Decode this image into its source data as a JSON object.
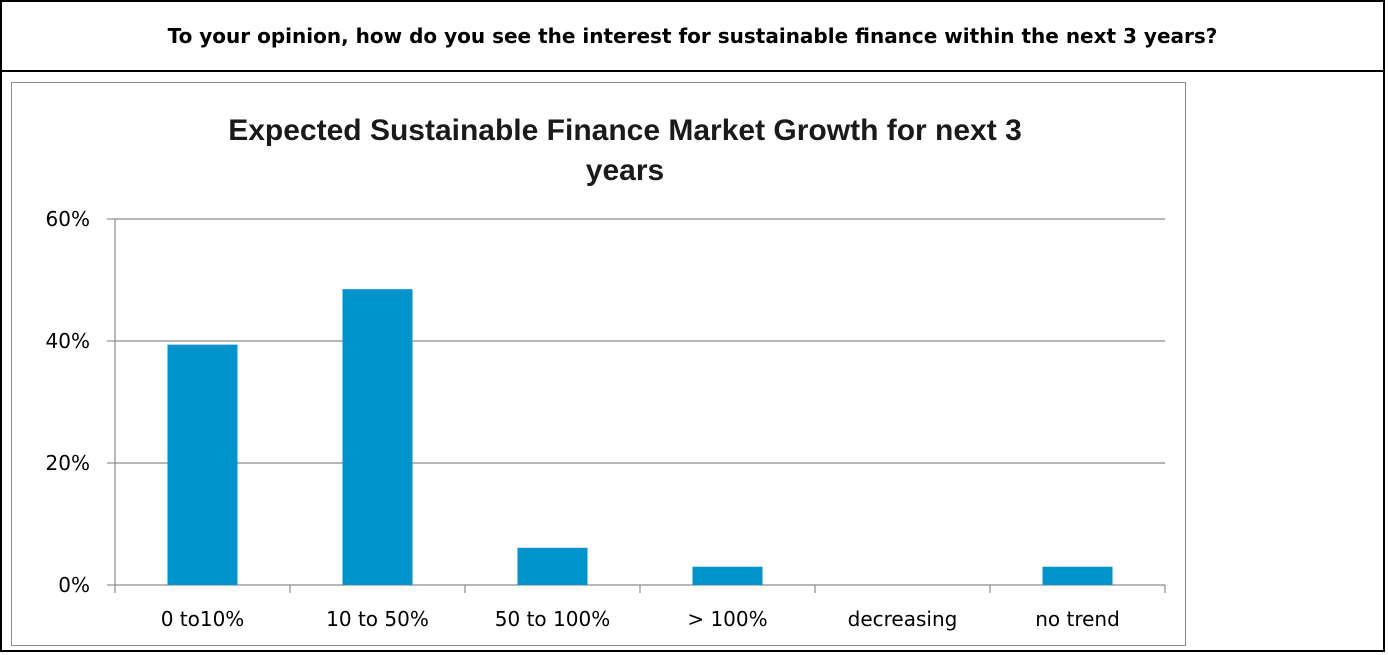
{
  "question": "To your opinion, how do you see the interest for sustainable finance within the next 3 years?",
  "chart_data": {
    "type": "bar",
    "title_lines": [
      "Expected Sustainable Finance Market Growth for next 3",
      "years"
    ],
    "categories": [
      "0 to10%",
      "10 to 50%",
      "50 to 100%",
      "> 100%",
      "decreasing",
      "no trend"
    ],
    "values": [
      0.394,
      0.485,
      0.061,
      0.03,
      0.0,
      0.03
    ],
    "ylim": [
      0,
      0.6
    ],
    "yticks": [
      0,
      0.2,
      0.4,
      0.6
    ],
    "ytick_labels": [
      "0%",
      "20%",
      "40%",
      "60%"
    ],
    "grid": true,
    "legend": "none",
    "bar_color": "#0093CC",
    "grid_color": "#8c8c8c"
  }
}
